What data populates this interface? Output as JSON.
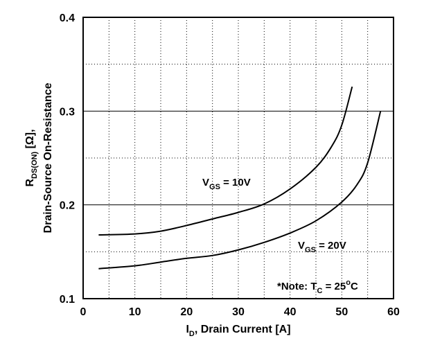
{
  "chart_data": {
    "type": "line",
    "x_axis": {
      "label_main": "I",
      "label_sub": "D",
      "label_rest": ", Drain Current [A]",
      "range": [
        0,
        60
      ],
      "ticks": [
        "0",
        "10",
        "20",
        "30",
        "40",
        "50",
        "60"
      ],
      "minor_step": 5
    },
    "y_axis": {
      "label_line1_main": "R",
      "label_line1_sub": "DS(ON)",
      "label_line1_rest": " [Ω],",
      "label_line2": "Drain-Source On-Resistance",
      "range": [
        0.1,
        0.4
      ],
      "ticks": [
        "0.1",
        "0.2",
        "0.3",
        "0.4"
      ],
      "minor_step": 0.05
    },
    "grid": true,
    "series": [
      {
        "label_main": "V",
        "label_sub": "GS",
        "label_rest": " = 10V",
        "x": [
          3,
          10,
          15,
          20,
          25,
          30,
          35,
          40,
          45,
          48,
          50,
          52
        ],
        "y": [
          0.168,
          0.169,
          0.172,
          0.178,
          0.185,
          0.192,
          0.201,
          0.217,
          0.24,
          0.262,
          0.285,
          0.326
        ]
      },
      {
        "label_main": "V",
        "label_sub": "GS",
        "label_rest": " = 20V",
        "x": [
          3,
          10,
          15,
          20,
          25,
          30,
          35,
          40,
          45,
          50,
          53,
          55,
          57.5
        ],
        "y": [
          0.132,
          0.135,
          0.139,
          0.143,
          0.146,
          0.152,
          0.16,
          0.17,
          0.183,
          0.203,
          0.222,
          0.245,
          0.3
        ]
      }
    ],
    "note": {
      "prefix": "*Note: T",
      "sub": "C",
      "value": " = 25",
      "sup": "o",
      "unit": "C"
    }
  }
}
